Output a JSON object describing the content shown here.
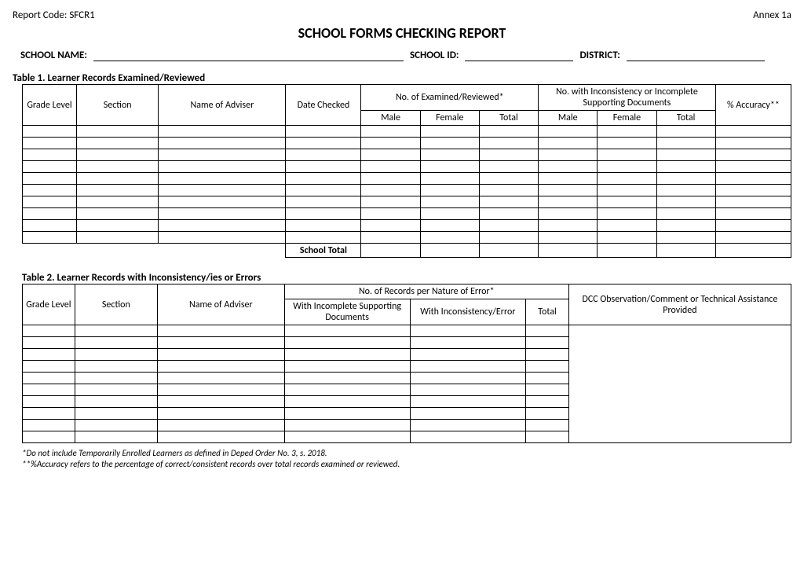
{
  "header": {
    "report_code_label": "Report Code: SFCR1",
    "annex_label": "Annex 1a",
    "title": "SCHOOL FORMS CHECKING REPORT",
    "school_name_label": "SCHOOL NAME:",
    "school_id_label": "SCHOOL ID:",
    "district_label": "DISTRICT:",
    "meta_blank_widths": {
      "school_name": 395,
      "school_id": 138,
      "district": 176
    }
  },
  "table1": {
    "caption": "Table 1.  Learner Records Examined/Reviewed",
    "cols": {
      "grade_level": "Grade Level",
      "section": "Section",
      "adviser": "Name of Adviser",
      "date_checked": "Date Checked",
      "examined_group": "No. of Examined/Reviewed*",
      "inconsistency_group": "No. with Inconsistency or Incomplete Supporting Documents",
      "male": "Male",
      "female": "Female",
      "total": "Total",
      "accuracy": "% Accuracy**"
    },
    "widths": {
      "grade": 66,
      "section": 100,
      "adviser": 155,
      "date": 92,
      "mft": 72,
      "acc": 92
    },
    "body_row_count": 10,
    "school_total_label": "School Total"
  },
  "table2": {
    "caption": "Table 2. Learner Records with Inconsistency/ies or Errors",
    "cols": {
      "grade_level": "Grade Level",
      "section": "Section",
      "adviser": "Name of Adviser",
      "records_group": "No. of Records per Nature of Error*",
      "incomplete": "With Incomplete Supporting Documents",
      "inconsistency": "With Inconsistency/Error",
      "total": "Total",
      "dcc": "DCC Observation/Comment or Technical Assistance Provided"
    },
    "widths": {
      "grade": 66,
      "section": 104,
      "adviser": 160,
      "incomplete": 158,
      "inconsistency": 146,
      "total": 54,
      "dcc": 280
    },
    "body_row_count": 10
  },
  "footnotes": {
    "line1": "*Do not include Temporarily Enrolled Learners as defined in Deped Order No. 3, s. 2018.",
    "line2": "**%Accuracy refers to the percentage of correct/consistent records over total records examined or reviewed."
  }
}
